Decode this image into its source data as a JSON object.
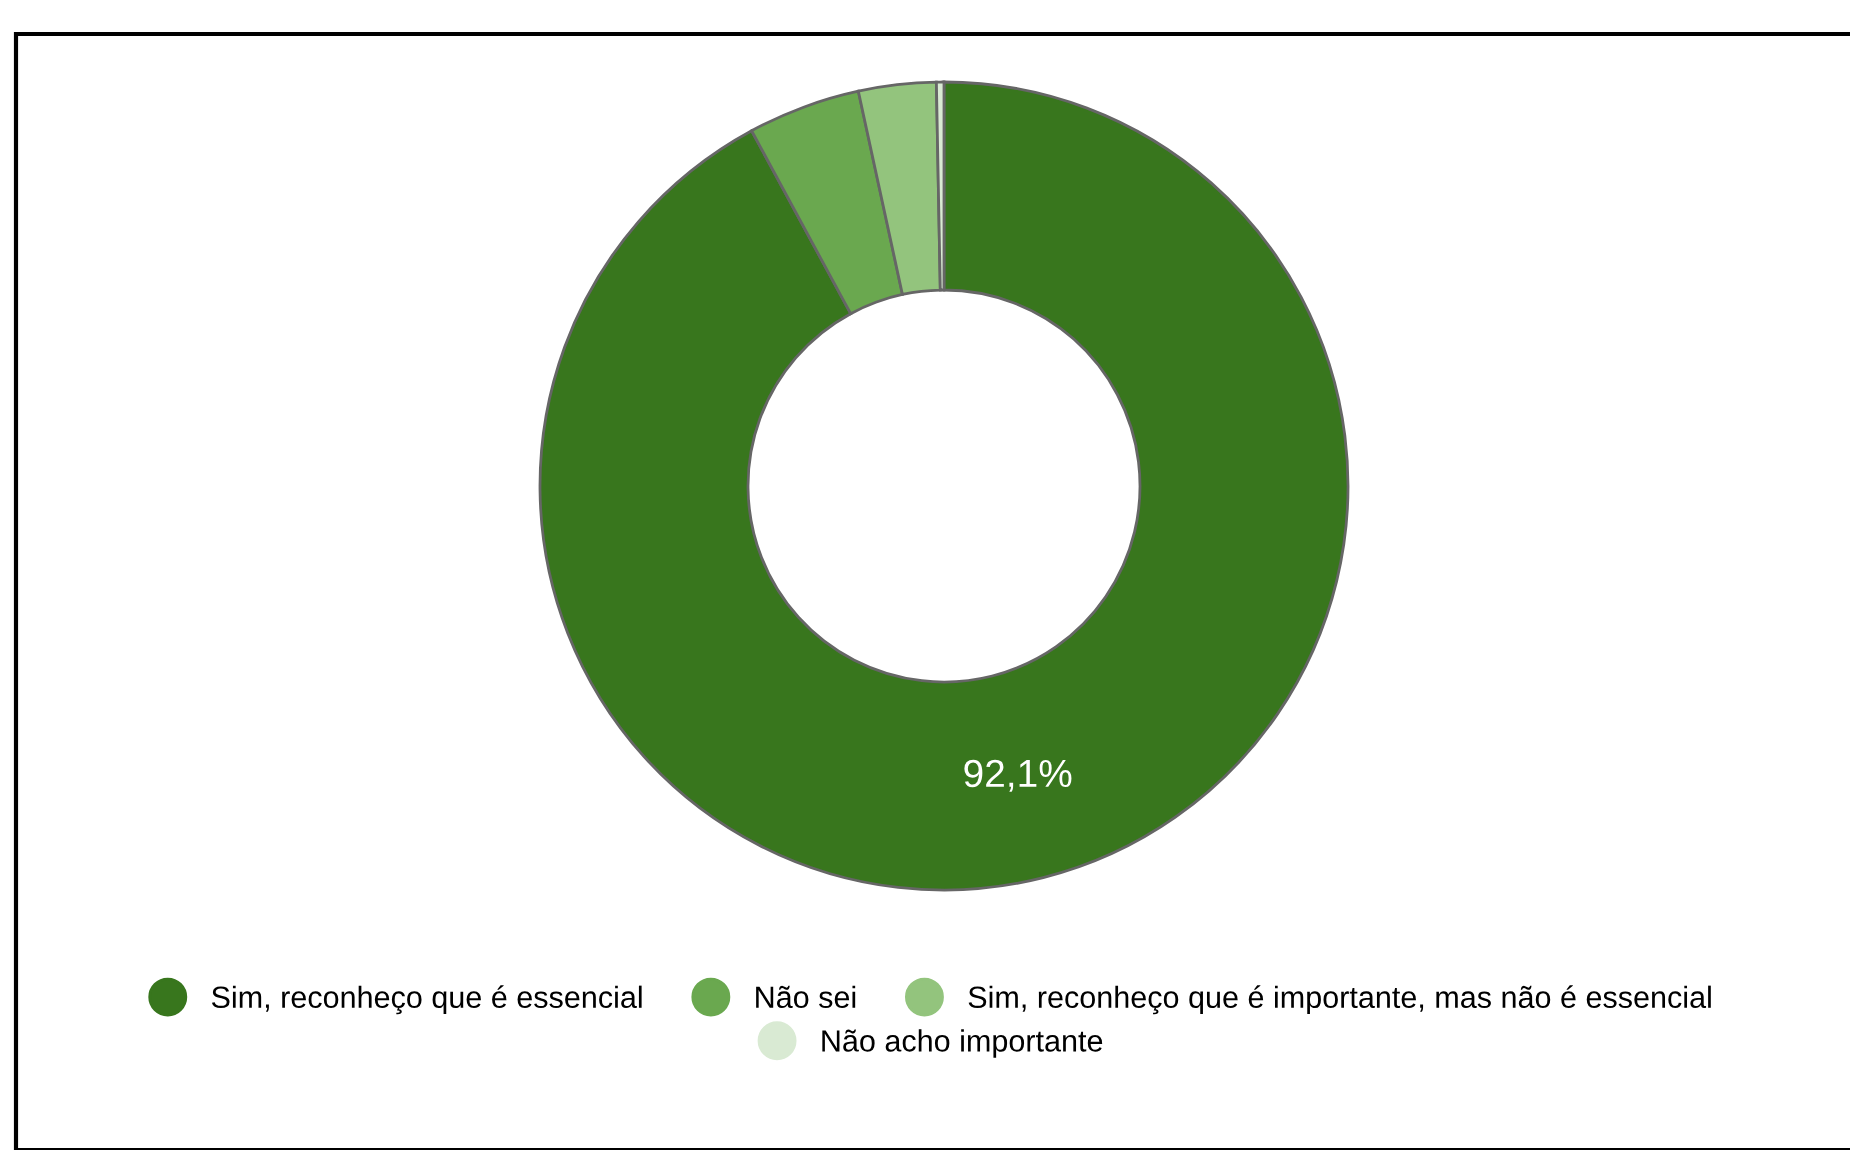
{
  "chart_data": {
    "type": "donut",
    "categories": [
      "Sim, reconheço que é essencial",
      "Não sei",
      "Sim, reconheço que é importante, mas não é essencial",
      "Não acho importante"
    ],
    "values": [
      92.1,
      4.5,
      3.1,
      0.3
    ],
    "colors": [
      "#38761d",
      "#6aa84f",
      "#93c47d",
      "#d9ead3"
    ],
    "value_labels": [
      "92,1%",
      null,
      null,
      null
    ],
    "legend": "bottom"
  }
}
